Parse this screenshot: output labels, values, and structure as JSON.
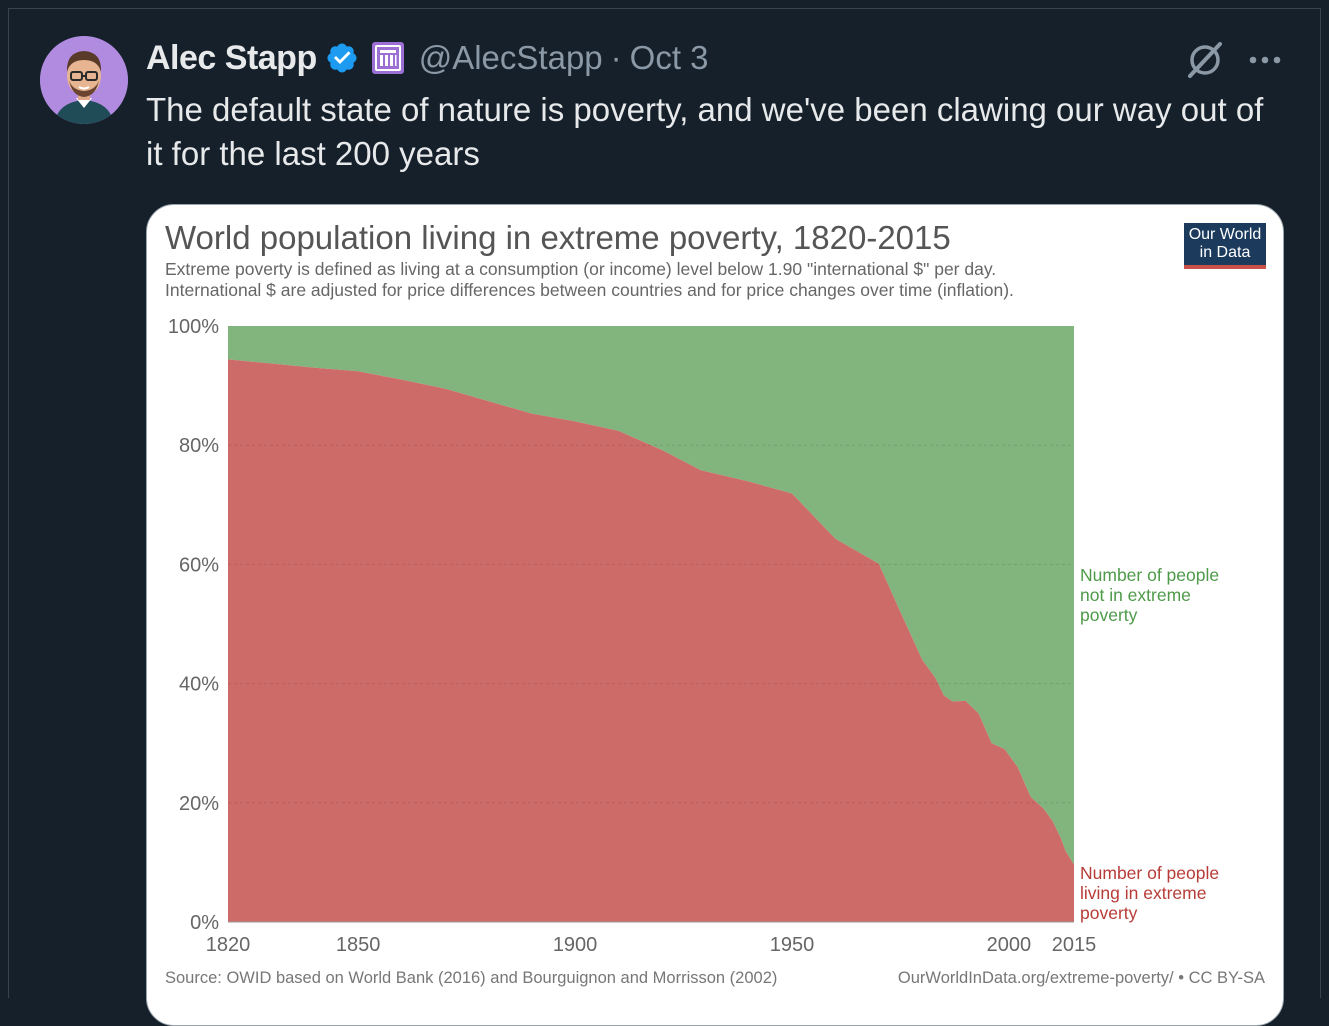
{
  "tweet": {
    "author_name": "Alec Stapp",
    "handle": "@AlecStapp",
    "separator": "·",
    "date": "Oct 3",
    "text": "The default state of nature is poverty, and we've been clawing our way out of it for the last 200 years"
  },
  "icons": {
    "verified": "verified-badge-icon",
    "affiliate": "affiliate-badge-icon",
    "grok": "grok-icon",
    "more": "more-icon"
  },
  "colors": {
    "background": "#15202b",
    "verified": "#1d9bf0",
    "affiliate": "#9b6fd4",
    "poverty": "#cd6b68",
    "not_poverty": "#82b47e"
  },
  "logo": {
    "line1": "Our World",
    "line2": "in Data"
  },
  "chart_data": {
    "type": "area",
    "title": "World population living in extreme poverty, 1820-2015",
    "subtitle_line1": "Extreme poverty is defined as living at a consumption (or income) level below 1.90 \"international $\" per day.",
    "subtitle_line2": "International $ are adjusted for price differences between countries and for price changes over time (inflation).",
    "stacked": true,
    "x": [
      1820,
      1830,
      1840,
      1850,
      1860,
      1870,
      1880,
      1890,
      1900,
      1910,
      1920,
      1929,
      1940,
      1950,
      1960,
      1970,
      1975,
      1980,
      1983,
      1985,
      1987,
      1990,
      1993,
      1996,
      1999,
      2002,
      2005,
      2008,
      2010,
      2012,
      2013,
      2015
    ],
    "series": [
      {
        "name": "Number of people living in extreme poverty",
        "color": "#cd6b68",
        "values": [
          94.4,
          93.7,
          93.0,
          92.4,
          91.0,
          89.5,
          87.4,
          85.3,
          84.0,
          82.4,
          79.2,
          75.8,
          73.9,
          71.9,
          64.3,
          60.1,
          52.0,
          44.0,
          41.0,
          38.0,
          37.0,
          37.1,
          35.0,
          30.0,
          29.0,
          26.0,
          21.0,
          19.0,
          17.0,
          14.0,
          12.0,
          9.6
        ]
      },
      {
        "name": "Number of people not in extreme poverty",
        "color": "#82b47e"
      }
    ],
    "series_labels": {
      "not_poverty": [
        "Number of people",
        "not in extreme",
        "poverty"
      ],
      "poverty": [
        "Number of people",
        "living in extreme",
        "poverty"
      ]
    },
    "y_ticks": [
      "0%",
      "20%",
      "40%",
      "60%",
      "80%",
      "100%"
    ],
    "y_tick_values": [
      0,
      20,
      40,
      60,
      80,
      100
    ],
    "x_ticks": [
      "1820",
      "1850",
      "1900",
      "1950",
      "2000",
      "2015"
    ],
    "x_tick_values": [
      1820,
      1850,
      1900,
      1950,
      2000,
      2015
    ],
    "xlim": [
      1820,
      2015
    ],
    "ylim": [
      0,
      100
    ],
    "grid": true,
    "source": "Source: OWID based on World Bank (2016) and Bourguignon and Morrisson (2002)",
    "url": "OurWorldInData.org/extreme-poverty/ • CC BY-SA"
  }
}
